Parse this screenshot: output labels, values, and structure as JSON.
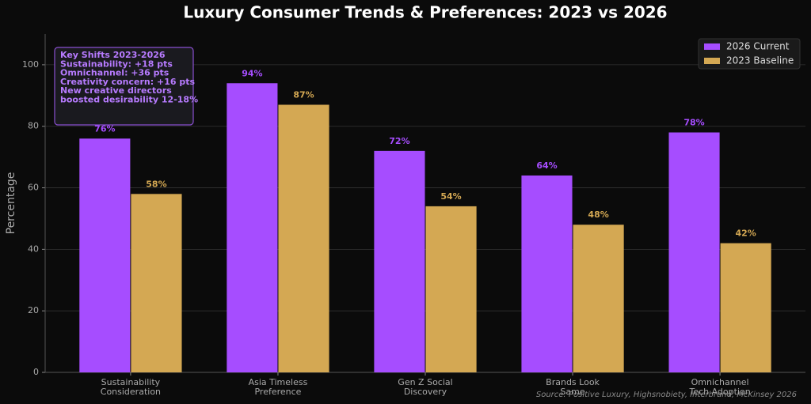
{
  "chart_data": {
    "type": "bar",
    "title": "Luxury Consumer Trends & Preferences: 2023 vs 2026",
    "y_label": "Percentage",
    "categories": [
      "Sustainability\nConsideration",
      "Asia Timeless\nPreference",
      "Gen Z Social\nDiscovery",
      "Brands Look\nSame",
      "Omnichannel\nTech Adoption"
    ],
    "series": [
      {
        "name": "2026 Current",
        "color": "#a64dff",
        "values": [
          76,
          94,
          72,
          64,
          78
        ],
        "value_labels": [
          "76%",
          "94%",
          "72%",
          "64%",
          "78%"
        ]
      },
      {
        "name": "2023 Baseline",
        "color": "#d4a853",
        "values": [
          58,
          87,
          54,
          48,
          42
        ],
        "value_labels": [
          "58%",
          "87%",
          "54%",
          "48%",
          "42%"
        ]
      }
    ],
    "ylim": [
      0,
      110
    ],
    "yticks": [
      0,
      20,
      40,
      60,
      80,
      100
    ],
    "grid": true,
    "legend": "upper-right",
    "annotation": "Key Shifts 2023-2026\n\nSustainability: +18 pts\nOmnichannel: +36 pts\n\nCreativity concern: +16 pts\nNew creative directors\nboosted desirability 12-18%",
    "source": "Source: Positive Luxury, Highsnobiety, Interbrand, McKinsey 2026"
  }
}
